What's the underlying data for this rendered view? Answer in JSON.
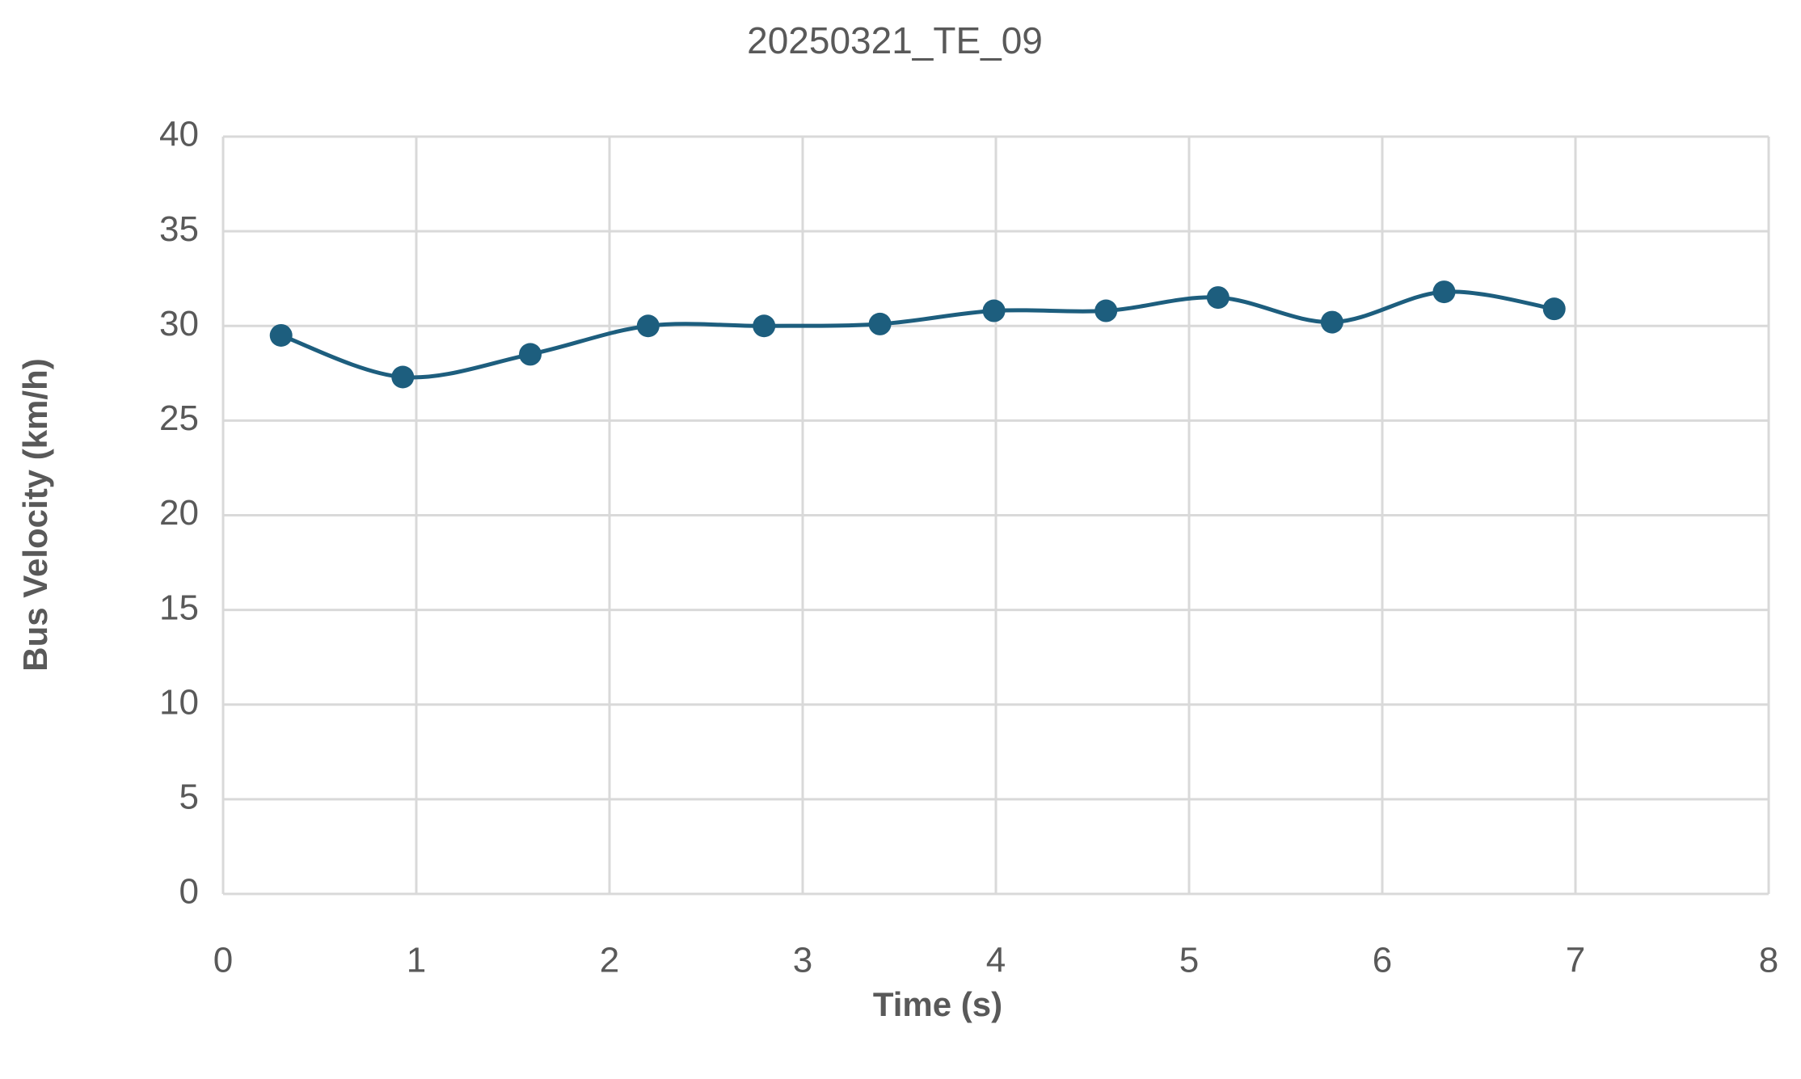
{
  "chart_data": {
    "type": "line",
    "title": "20250321_TE_09",
    "x_label": "Time (s)",
    "y_label": "Bus Velocity (km/h)",
    "series": [
      {
        "name": "Bus Velocity",
        "color": "#1d5e7e",
        "x": [
          0.3,
          0.93,
          1.59,
          2.2,
          2.8,
          3.4,
          3.99,
          4.57,
          5.15,
          5.74,
          6.32,
          6.89
        ],
        "values": [
          29.5,
          27.3,
          28.5,
          30.0,
          30.0,
          30.1,
          30.8,
          30.8,
          31.5,
          30.2,
          31.8,
          30.9
        ]
      }
    ],
    "xlim": [
      0,
      8
    ],
    "xticks": [
      0,
      1,
      2,
      3,
      4,
      5,
      6,
      7,
      8
    ],
    "ylim": [
      0,
      40
    ],
    "yticks": [
      0,
      5,
      10,
      15,
      20,
      25,
      30,
      35,
      40
    ],
    "grid": true,
    "smooth": true,
    "markers": true
  }
}
